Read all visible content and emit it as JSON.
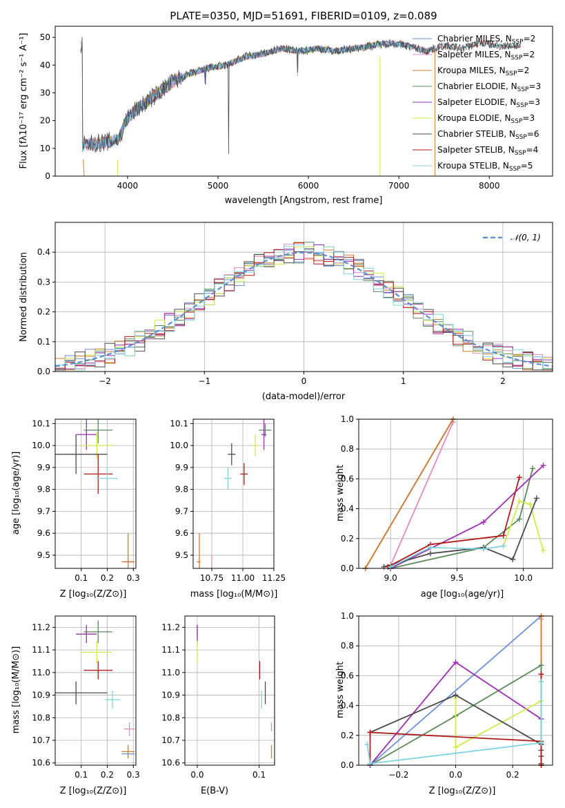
{
  "colors": {
    "Chabrier MILES": "#6a8fd8",
    "Salpeter MILES": "#e089c0",
    "Kroupa MILES": "#d07a2a",
    "Chabrier ELODIE": "#5a8a5a",
    "Salpeter ELODIE": "#9a2fb0",
    "Kroupa ELODIE": "#cfe84a",
    "Chabrier STELIB": "#4a4a4a",
    "Salpeter STELIB": "#b01a1a",
    "Kroupa STELIB": "#7fd4e0"
  },
  "chart_data": [
    {
      "id": "spectrum",
      "type": "line",
      "title": "PLATE=0350, MJD=51691, FIBERID=0109, z=0.089",
      "xlabel": "wavelength [Angstrom, rest frame]",
      "ylabel": "Flux [fλ10⁻¹⁷ erg cm⁻² s⁻¹ A⁻¹]",
      "xlim": [
        3200,
        8700
      ],
      "ylim": [
        0,
        54
      ],
      "xticks": [
        4000,
        5000,
        6000,
        7000,
        8000
      ],
      "yticks": [
        0,
        10,
        20,
        30,
        40,
        50
      ],
      "grid": false,
      "legend_position": "upper right",
      "continuum": {
        "x": [
          3500,
          3700,
          3900,
          4000,
          4100,
          4300,
          4500,
          4700,
          4900,
          5100,
          5300,
          5500,
          5700,
          5900,
          6100,
          6300,
          6500,
          6700,
          6900,
          7100,
          7300,
          7500,
          7700,
          7900,
          8100,
          8300
        ],
        "y": [
          11,
          12,
          13,
          21,
          24,
          29,
          34,
          37,
          39,
          40,
          43,
          44,
          46,
          45,
          46,
          45,
          46,
          47,
          48,
          47,
          45,
          47,
          46,
          48,
          47,
          47
        ]
      },
      "series": [
        {
          "name": "Chabrier MILES, N_SSP=2",
          "label_main": "Chabrier MILES, N",
          "label_sub": "SSP",
          "label_tail": "=2"
        },
        {
          "name": "Salpeter MILES, N_SSP=2",
          "label_main": "Salpeter MILES, N",
          "label_sub": "SSP",
          "label_tail": "=2"
        },
        {
          "name": "Kroupa MILES, N_SSP=2",
          "label_main": "Kroupa MILES, N",
          "label_sub": "SSP",
          "label_tail": "=2"
        },
        {
          "name": "Chabrier ELODIE, N_SSP=3",
          "label_main": "Chabrier ELODIE, N",
          "label_sub": "SSP",
          "label_tail": "=3"
        },
        {
          "name": "Salpeter ELODIE, N_SSP=3",
          "label_main": "Salpeter ELODIE, N",
          "label_sub": "SSP",
          "label_tail": "=3"
        },
        {
          "name": "Kroupa ELODIE, N_SSP=3",
          "label_main": "Kroupa ELODIE, N",
          "label_sub": "SSP",
          "label_tail": "=3"
        },
        {
          "name": "Chabrier STELIB, N_SSP=6",
          "label_main": "Chabrier STELIB, N",
          "label_sub": "SSP",
          "label_tail": "=6"
        },
        {
          "name": "Salpeter STELIB, N_SSP=4",
          "label_main": "Salpeter STELIB, N",
          "label_sub": "SSP",
          "label_tail": "=4"
        },
        {
          "name": "Kroupa STELIB, N_SSP=5",
          "label_main": "Kroupa STELIB, N",
          "label_sub": "SSP",
          "label_tail": "=5"
        }
      ]
    },
    {
      "id": "residuals",
      "type": "line",
      "xlabel": "(data-model)/error",
      "ylabel": "Normed distribution",
      "xlim": [
        -2.5,
        2.5
      ],
      "ylim": [
        0,
        0.5
      ],
      "xticks": [
        -2,
        -1,
        0,
        1,
        2
      ],
      "yticks": [
        0.0,
        0.1,
        0.2,
        0.3,
        0.4
      ],
      "grid": true,
      "legend_position": "upper right",
      "reference_curve": "N(0,1)",
      "legend_label": "𝒩(0, 1)"
    },
    {
      "id": "age_vs_Z",
      "type": "scatter",
      "xlabel": "Z [log₁₀(Z/Z⊙)]",
      "ylabel": "age  [log₁₀(age/yr)]",
      "xlim": [
        0.0,
        0.31
      ],
      "ylim": [
        9.44,
        10.12
      ],
      "xticks": [
        0.1,
        0.2,
        0.3
      ],
      "yticks": [
        9.5,
        9.6,
        9.7,
        9.8,
        9.9,
        10.0,
        10.1
      ],
      "grid": true,
      "points": [
        {
          "series": "Chabrier MILES",
          "x": 0.285,
          "y": 9.47,
          "xerr": 0.02,
          "yerr": 0.0
        },
        {
          "series": "Salpeter MILES",
          "x": 0.285,
          "y": 9.47,
          "xerr": 0.015,
          "yerr": 0.0
        },
        {
          "series": "Kroupa MILES",
          "x": 0.28,
          "y": 9.47,
          "xerr": 0.025,
          "yerr": 0.13
        },
        {
          "series": "Chabrier ELODIE",
          "x": 0.165,
          "y": 10.07,
          "xerr": 0.055,
          "yerr": 0.06
        },
        {
          "series": "Salpeter ELODIE",
          "x": 0.12,
          "y": 10.05,
          "xerr": 0.04,
          "yerr": 0.07
        },
        {
          "series": "Kroupa ELODIE",
          "x": 0.16,
          "y": 10.0,
          "xerr": 0.06,
          "yerr": 0.06
        },
        {
          "series": "Chabrier STELIB",
          "x": 0.08,
          "y": 9.96,
          "xerr": 0.12,
          "yerr": 0.09
        },
        {
          "series": "Salpeter STELIB",
          "x": 0.165,
          "y": 9.87,
          "xerr": 0.055,
          "yerr": 0.09
        },
        {
          "series": "Kroupa STELIB",
          "x": 0.2,
          "y": 9.85,
          "xerr": 0.04,
          "yerr": 0.05
        }
      ]
    },
    {
      "id": "age_vs_mass",
      "type": "scatter",
      "xlabel": "mass [log₁₀(M/M⊙)]",
      "ylabel": "",
      "xlim": [
        10.6,
        11.25
      ],
      "ylim": [
        9.44,
        10.12
      ],
      "xticks": [
        10.75,
        11.0,
        11.25
      ],
      "yticks": [
        9.5,
        9.6,
        9.7,
        9.8,
        9.9,
        10.0,
        10.1
      ],
      "grid": true,
      "points": [
        {
          "series": "Chabrier MILES",
          "x": 10.64,
          "y": 9.47,
          "xerr": 0.01,
          "yerr": 0.0
        },
        {
          "series": "Salpeter MILES",
          "x": 10.75,
          "y": 9.47,
          "xerr": 0.0,
          "yerr": 0.03
        },
        {
          "series": "Kroupa MILES",
          "x": 10.65,
          "y": 9.47,
          "xerr": 0.01,
          "yerr": 0.13
        },
        {
          "series": "Chabrier ELODIE",
          "x": 11.18,
          "y": 10.07,
          "xerr": 0.05,
          "yerr": 0.03
        },
        {
          "series": "Salpeter ELODIE",
          "x": 11.17,
          "y": 10.05,
          "xerr": 0.02,
          "yerr": 0.07
        },
        {
          "series": "Kroupa ELODIE",
          "x": 11.1,
          "y": 10.0,
          "xerr": 0.02,
          "yerr": 0.05
        },
        {
          "series": "Chabrier STELIB",
          "x": 10.91,
          "y": 9.96,
          "xerr": 0.03,
          "yerr": 0.05
        },
        {
          "series": "Salpeter STELIB",
          "x": 11.01,
          "y": 9.87,
          "xerr": 0.03,
          "yerr": 0.05
        },
        {
          "series": "Kroupa STELIB",
          "x": 10.88,
          "y": 9.85,
          "xerr": 0.03,
          "yerr": 0.05
        }
      ]
    },
    {
      "id": "weight_vs_age",
      "type": "line",
      "xlabel": "age  [log₁₀(age/yr)]",
      "ylabel": "mass weight",
      "xlim": [
        8.76,
        10.22
      ],
      "ylim": [
        0,
        1.0
      ],
      "xticks": [
        9.0,
        9.5,
        10.0
      ],
      "yticks": [
        0.0,
        0.2,
        0.4,
        0.6,
        0.8,
        1.0
      ],
      "grid": true,
      "series": [
        {
          "name": "Chabrier MILES",
          "x": [
            8.81,
            9.47
          ],
          "y": [
            0.0,
            1.0
          ]
        },
        {
          "name": "Salpeter MILES",
          "x": [
            9.0,
            9.47
          ],
          "y": [
            0.02,
            0.98
          ]
        },
        {
          "name": "Kroupa MILES",
          "x": [
            8.81,
            9.47
          ],
          "y": [
            0.0,
            1.0
          ]
        },
        {
          "name": "Chabrier ELODIE",
          "x": [
            9.0,
            9.7,
            9.97,
            10.07
          ],
          "y": [
            0.0,
            0.14,
            0.33,
            0.67
          ]
        },
        {
          "name": "Salpeter ELODIE",
          "x": [
            9.0,
            9.7,
            10.15
          ],
          "y": [
            0.0,
            0.31,
            0.69
          ]
        },
        {
          "name": "Kroupa ELODIE",
          "x": [
            9.85,
            9.97,
            10.05,
            10.15
          ],
          "y": [
            0.15,
            0.45,
            0.43,
            0.12
          ]
        },
        {
          "name": "Chabrier STELIB",
          "x": [
            8.95,
            9.3,
            9.7,
            9.92,
            10.1
          ],
          "y": [
            0.01,
            0.1,
            0.14,
            0.06,
            0.47
          ]
        },
        {
          "name": "Salpeter STELIB",
          "x": [
            8.98,
            9.3,
            9.85,
            9.97
          ],
          "y": [
            0.01,
            0.16,
            0.22,
            0.61
          ]
        },
        {
          "name": "Kroupa STELIB",
          "x": [
            9.0,
            9.3,
            9.7,
            9.85
          ],
          "y": [
            0.01,
            0.14,
            0.13,
            0.15
          ]
        }
      ]
    },
    {
      "id": "mass_vs_Z",
      "type": "scatter",
      "xlabel": "Z [log₁₀(Z/Z⊙)]",
      "ylabel": "mass [log₁₀(M/M⊙)]",
      "xlim": [
        0.0,
        0.31
      ],
      "ylim": [
        10.59,
        11.25
      ],
      "xticks": [
        0.1,
        0.2,
        0.3
      ],
      "yticks": [
        10.6,
        10.7,
        10.8,
        10.9,
        11.0,
        11.1,
        11.2
      ],
      "grid": true,
      "points": [
        {
          "series": "Chabrier MILES",
          "x": 0.28,
          "y": 10.64,
          "xerr": 0.025,
          "yerr": 0.0
        },
        {
          "series": "Salpeter MILES",
          "x": 0.285,
          "y": 10.75,
          "xerr": 0.02,
          "yerr": 0.03
        },
        {
          "series": "Kroupa MILES",
          "x": 0.28,
          "y": 10.65,
          "xerr": 0.025,
          "yerr": 0.03
        },
        {
          "series": "Chabrier ELODIE",
          "x": 0.165,
          "y": 11.18,
          "xerr": 0.055,
          "yerr": 0.05
        },
        {
          "series": "Salpeter ELODIE",
          "x": 0.12,
          "y": 11.17,
          "xerr": 0.04,
          "yerr": 0.04
        },
        {
          "series": "Kroupa ELODIE",
          "x": 0.16,
          "y": 11.09,
          "xerr": 0.06,
          "yerr": 0.05
        },
        {
          "series": "Chabrier STELIB",
          "x": 0.08,
          "y": 10.91,
          "xerr": 0.12,
          "yerr": 0.05
        },
        {
          "series": "Salpeter STELIB",
          "x": 0.165,
          "y": 11.01,
          "xerr": 0.055,
          "yerr": 0.04
        },
        {
          "series": "Kroupa STELIB",
          "x": 0.22,
          "y": 10.88,
          "xerr": 0.03,
          "yerr": 0.04
        }
      ]
    },
    {
      "id": "mass_vs_EBV",
      "type": "scatter",
      "xlabel": "E(B-V)",
      "ylabel": "",
      "xlim": [
        -0.02,
        0.125
      ],
      "ylim": [
        10.59,
        11.25
      ],
      "xticks": [
        0.0,
        0.1
      ],
      "yticks": [
        10.6,
        10.7,
        10.8,
        10.9,
        11.0,
        11.1,
        11.2
      ],
      "grid": true,
      "points": [
        {
          "series": "Chabrier MILES",
          "x": 0.12,
          "y": 10.64,
          "xerr": 0.0,
          "yerr": 0.0
        },
        {
          "series": "Salpeter MILES",
          "x": 0.12,
          "y": 10.76,
          "xerr": 0.0,
          "yerr": 0.02
        },
        {
          "series": "Kroupa MILES",
          "x": 0.12,
          "y": 10.65,
          "xerr": 0.0,
          "yerr": 0.03
        },
        {
          "series": "Chabrier ELODIE",
          "x": 0.0,
          "y": 11.18,
          "xerr": 0.0,
          "yerr": 0.03
        },
        {
          "series": "Salpeter ELODIE",
          "x": 0.0,
          "y": 11.17,
          "xerr": 0.0,
          "yerr": 0.04
        },
        {
          "series": "Kroupa ELODIE",
          "x": 0.0,
          "y": 11.09,
          "xerr": 0.0,
          "yerr": 0.05
        },
        {
          "series": "Chabrier STELIB",
          "x": 0.11,
          "y": 10.91,
          "xerr": 0.0,
          "yerr": 0.05
        },
        {
          "series": "Salpeter STELIB",
          "x": 0.101,
          "y": 11.01,
          "xerr": 0.0,
          "yerr": 0.04
        },
        {
          "series": "Kroupa STELIB",
          "x": 0.104,
          "y": 10.88,
          "xerr": 0.0,
          "yerr": 0.04
        }
      ]
    },
    {
      "id": "weight_vs_Z",
      "type": "line",
      "xlabel": "Z [log₁₀(Z/Z⊙)]",
      "ylabel": "mass weight",
      "xlim": [
        -0.34,
        0.34
      ],
      "ylim": [
        0,
        1.0
      ],
      "xticks": [
        -0.2,
        0.0,
        0.2
      ],
      "yticks": [
        0.0,
        0.2,
        0.4,
        0.6,
        0.8,
        1.0
      ],
      "grid": true,
      "series": [
        {
          "name": "Chabrier MILES",
          "x": [
            -0.3,
            0.3
          ],
          "y": [
            0.0,
            1.0
          ]
        },
        {
          "name": "Salpeter MILES",
          "x": [
            0.3,
            0.3
          ],
          "y": [
            0.0,
            0.98
          ]
        },
        {
          "name": "Kroupa MILES",
          "x": [
            0.3,
            0.3
          ],
          "y": [
            0.0,
            1.0
          ]
        },
        {
          "name": "Chabrier ELODIE",
          "x": [
            -0.3,
            0.0,
            0.3,
            0.3
          ],
          "y": [
            0.0,
            0.33,
            0.67,
            0.0
          ]
        },
        {
          "name": "Salpeter ELODIE",
          "x": [
            -0.3,
            0.0,
            0.3
          ],
          "y": [
            0.0,
            0.69,
            0.31
          ]
        },
        {
          "name": "Kroupa ELODIE",
          "x": [
            0.0,
            0.0,
            0.3,
            0.3
          ],
          "y": [
            0.45,
            0.12,
            0.43,
            0.0
          ]
        },
        {
          "name": "Chabrier STELIB",
          "x": [
            -0.3,
            0.0,
            0.3,
            0.3,
            0.3,
            0.3
          ],
          "y": [
            0.22,
            0.47,
            0.14,
            0.1,
            0.06,
            0.01
          ]
        },
        {
          "name": "Salpeter STELIB",
          "x": [
            -0.3,
            -0.3,
            0.3,
            0.3,
            0.3
          ],
          "y": [
            0.01,
            0.22,
            0.16,
            0.61,
            0.0
          ]
        },
        {
          "name": "Kroupa STELIB",
          "x": [
            -0.31,
            -0.3,
            0.3,
            0.3
          ],
          "y": [
            0.14,
            0.01,
            0.15,
            0.56
          ]
        }
      ]
    }
  ]
}
